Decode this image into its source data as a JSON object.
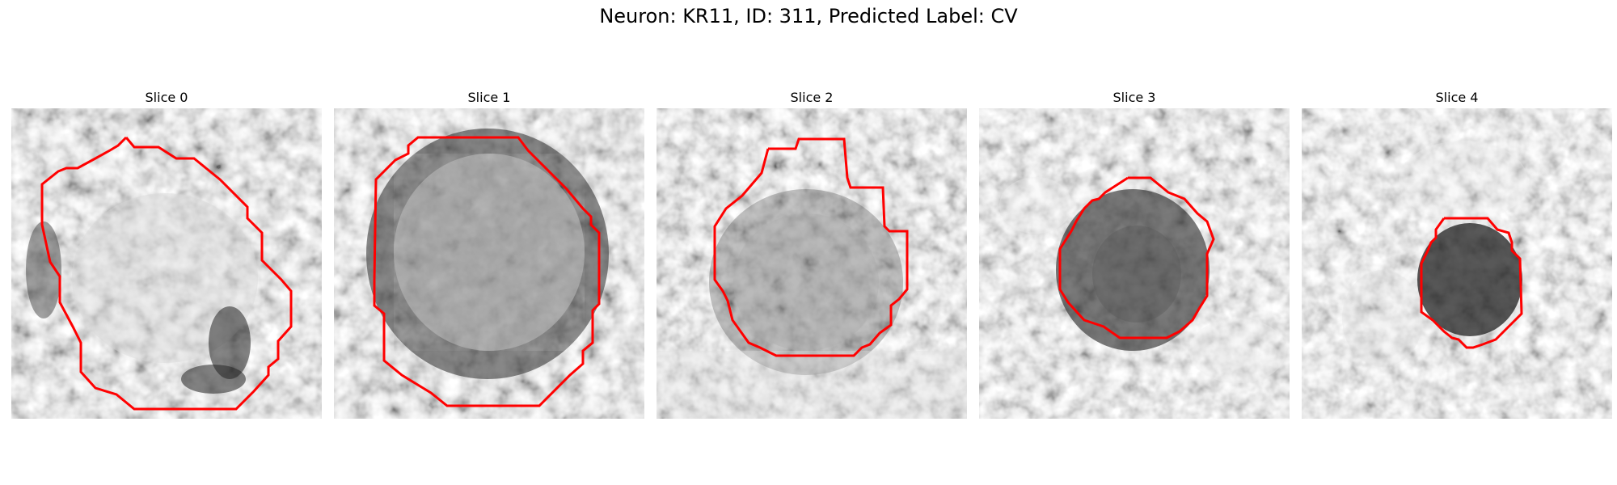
{
  "figure": {
    "title": "Neuron: KR11, ID: 311, Predicted Label: CV"
  },
  "panels": [
    {
      "title": "Slice 0"
    },
    {
      "title": "Slice 1"
    },
    {
      "title": "Slice 2"
    },
    {
      "title": "Slice 3"
    },
    {
      "title": "Slice 4"
    }
  ],
  "colors": {
    "contour": "#ff0000"
  }
}
